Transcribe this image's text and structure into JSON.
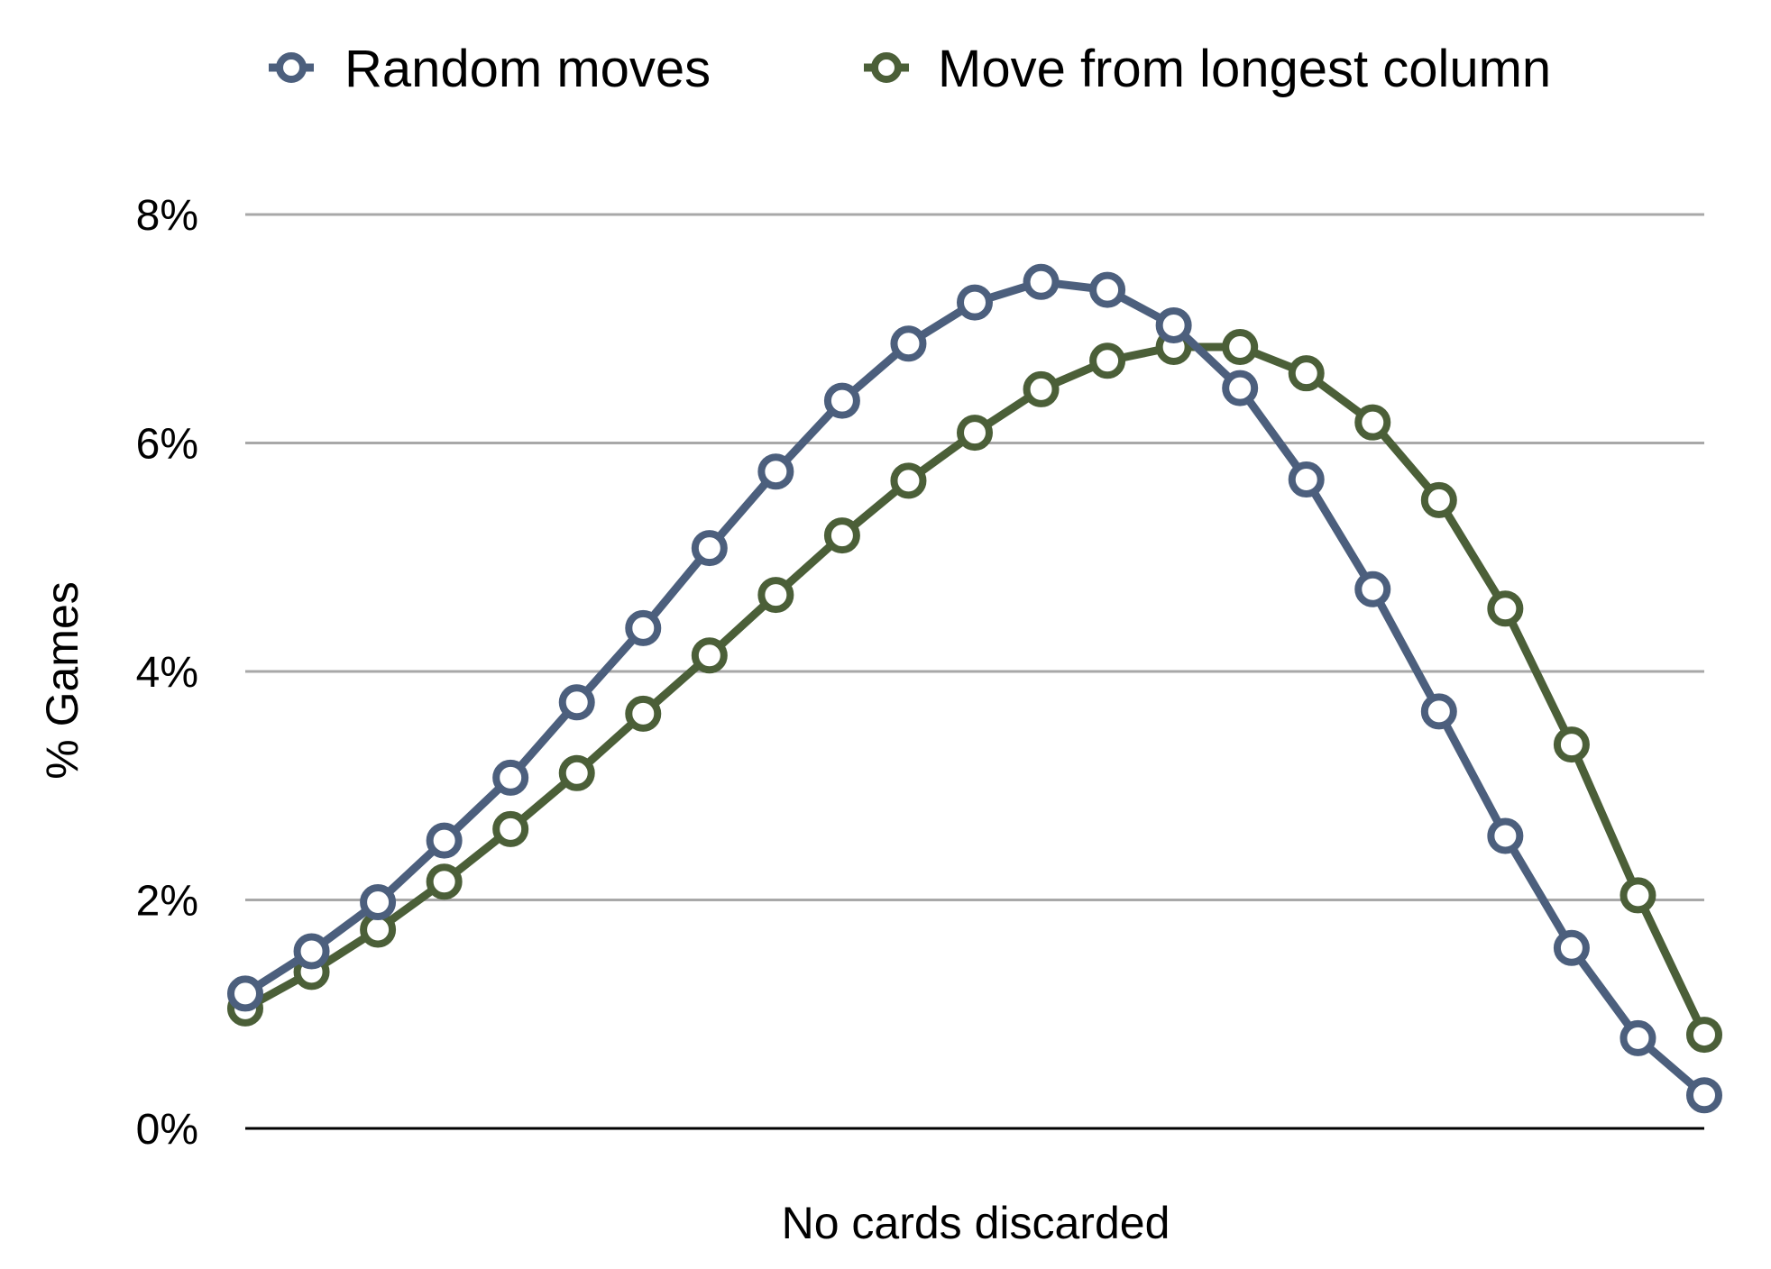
{
  "chart_data": {
    "type": "line",
    "title": "",
    "xlabel": "No cards discarded",
    "ylabel": "% Games",
    "ylim": [
      0,
      8
    ],
    "y_ticks": [
      "0%",
      "2%",
      "4%",
      "6%",
      "8%"
    ],
    "y_tick_values": [
      0,
      2,
      4,
      6,
      8
    ],
    "x": [
      1,
      2,
      3,
      4,
      5,
      6,
      7,
      8,
      9,
      10,
      11,
      12,
      13,
      14,
      15,
      16,
      17,
      18,
      19,
      20,
      21,
      22,
      23
    ],
    "grid": true,
    "legend_position": "top",
    "series": [
      {
        "name": "Random moves",
        "color": "#4c5f7d",
        "values": [
          1.18,
          1.55,
          1.98,
          2.52,
          3.07,
          3.73,
          4.38,
          5.08,
          5.75,
          6.37,
          6.87,
          7.23,
          7.41,
          7.34,
          7.03,
          6.48,
          5.68,
          4.72,
          3.65,
          2.56,
          1.58,
          0.79,
          0.29
        ]
      },
      {
        "name": "Move from longest column",
        "color": "#4b5f38",
        "values": [
          1.05,
          1.37,
          1.74,
          2.16,
          2.62,
          3.11,
          3.63,
          4.14,
          4.67,
          5.19,
          5.67,
          6.09,
          6.47,
          6.72,
          6.84,
          6.84,
          6.61,
          6.18,
          5.5,
          4.55,
          3.36,
          2.04,
          0.82
        ]
      }
    ]
  }
}
